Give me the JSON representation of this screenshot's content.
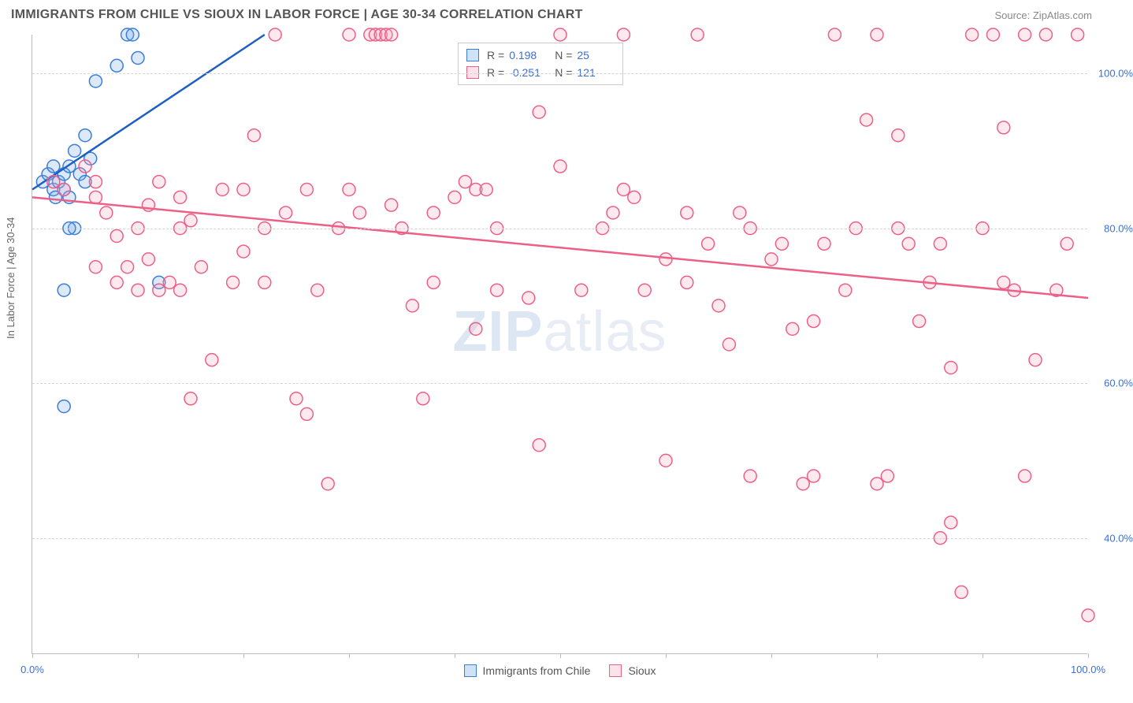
{
  "title": "IMMIGRANTS FROM CHILE VS SIOUX IN LABOR FORCE | AGE 30-34 CORRELATION CHART",
  "source": "Source: ZipAtlas.com",
  "ylabel": "In Labor Force | Age 30-34",
  "watermark_bold": "ZIP",
  "watermark_rest": "atlas",
  "chart": {
    "type": "scatter-correlation",
    "background_color": "#ffffff",
    "grid_color": "#d5d5d5",
    "axis_color": "#bbbbbb",
    "tick_label_color": "#3b6fd6",
    "xlim": [
      0,
      100
    ],
    "ylim": [
      25,
      105
    ],
    "xtick_positions": [
      0,
      10,
      20,
      30,
      40,
      50,
      60,
      70,
      80,
      90,
      100
    ],
    "xtick_labels": {
      "0": "0.0%",
      "100": "100.0%"
    },
    "ytick_positions": [
      40,
      60,
      80,
      100
    ],
    "ytick_labels": [
      "40.0%",
      "60.0%",
      "80.0%",
      "100.0%"
    ],
    "marker_radius": 8,
    "marker_stroke_width": 1.5,
    "marker_fill_opacity": 0.25,
    "trendline_width": 2.5
  },
  "series": [
    {
      "name": "Immigrants from Chile",
      "short": "chile",
      "color": "#6fa8e8",
      "stroke": "#3b7dd8",
      "trend_color": "#1e5fc4",
      "R": "0.198",
      "N": "25",
      "trendline": {
        "x1": 0,
        "y1": 85,
        "x2": 22,
        "y2": 105,
        "dashed_extension": true
      },
      "points": [
        [
          1,
          86
        ],
        [
          1.5,
          87
        ],
        [
          2,
          85
        ],
        [
          2,
          88
        ],
        [
          2.2,
          84
        ],
        [
          2.5,
          86
        ],
        [
          3,
          87
        ],
        [
          3,
          85
        ],
        [
          3.5,
          88
        ],
        [
          3.5,
          84
        ],
        [
          4,
          90
        ],
        [
          4.5,
          87
        ],
        [
          5,
          92
        ],
        [
          5,
          86
        ],
        [
          5.5,
          89
        ],
        [
          6,
          99
        ],
        [
          8,
          101
        ],
        [
          9,
          105
        ],
        [
          9.5,
          105
        ],
        [
          10,
          102
        ],
        [
          4,
          80
        ],
        [
          3.5,
          80
        ],
        [
          3,
          72
        ],
        [
          3,
          57
        ],
        [
          12,
          73
        ]
      ]
    },
    {
      "name": "Sioux",
      "short": "sioux",
      "color": "#f7a8bd",
      "stroke": "#ec5f87",
      "trend_color": "#ec5f87",
      "R": "-0.251",
      "N": "121",
      "trendline": {
        "x1": 0,
        "y1": 84,
        "x2": 100,
        "y2": 71,
        "dashed_extension": false
      },
      "points": [
        [
          2,
          86
        ],
        [
          3,
          85
        ],
        [
          5,
          88
        ],
        [
          6,
          84
        ],
        [
          6,
          86
        ],
        [
          7,
          82
        ],
        [
          8,
          79
        ],
        [
          9,
          75
        ],
        [
          10,
          80
        ],
        [
          11,
          76
        ],
        [
          12,
          86
        ],
        [
          13,
          73
        ],
        [
          14,
          84
        ],
        [
          14,
          72
        ],
        [
          15,
          81
        ],
        [
          16,
          75
        ],
        [
          17,
          63
        ],
        [
          18,
          85
        ],
        [
          20,
          85
        ],
        [
          21,
          92
        ],
        [
          22,
          80
        ],
        [
          23,
          105
        ],
        [
          24,
          82
        ],
        [
          25,
          58
        ],
        [
          26,
          56
        ],
        [
          27,
          72
        ],
        [
          28,
          47
        ],
        [
          29,
          80
        ],
        [
          30,
          105
        ],
        [
          31,
          82
        ],
        [
          32,
          105
        ],
        [
          32.5,
          105
        ],
        [
          33,
          105
        ],
        [
          33.5,
          105
        ],
        [
          34,
          105
        ],
        [
          35,
          80
        ],
        [
          36,
          70
        ],
        [
          37,
          58
        ],
        [
          38,
          82
        ],
        [
          40,
          84
        ],
        [
          41,
          86
        ],
        [
          42,
          67
        ],
        [
          42,
          85
        ],
        [
          43,
          85
        ],
        [
          44,
          80
        ],
        [
          47,
          71
        ],
        [
          48,
          52
        ],
        [
          48,
          95
        ],
        [
          50,
          105
        ],
        [
          52,
          72
        ],
        [
          54,
          80
        ],
        [
          55,
          82
        ],
        [
          56,
          105
        ],
        [
          57,
          84
        ],
        [
          58,
          72
        ],
        [
          60,
          50
        ],
        [
          60,
          76
        ],
        [
          62,
          73
        ],
        [
          63,
          105
        ],
        [
          64,
          78
        ],
        [
          65,
          70
        ],
        [
          66,
          65
        ],
        [
          67,
          82
        ],
        [
          68,
          48
        ],
        [
          70,
          76
        ],
        [
          71,
          78
        ],
        [
          72,
          67
        ],
        [
          73,
          47
        ],
        [
          74,
          48
        ],
        [
          75,
          78
        ],
        [
          76,
          105
        ],
        [
          77,
          72
        ],
        [
          78,
          80
        ],
        [
          79,
          94
        ],
        [
          80,
          105
        ],
        [
          81,
          48
        ],
        [
          82,
          80
        ],
        [
          82,
          92
        ],
        [
          83,
          78
        ],
        [
          84,
          68
        ],
        [
          85,
          73
        ],
        [
          86,
          40
        ],
        [
          87,
          62
        ],
        [
          87,
          42
        ],
        [
          88,
          33
        ],
        [
          89,
          105
        ],
        [
          90,
          80
        ],
        [
          91,
          105
        ],
        [
          92,
          93
        ],
        [
          93,
          72
        ],
        [
          94,
          105
        ],
        [
          94,
          48
        ],
        [
          95,
          63
        ],
        [
          96,
          105
        ],
        [
          97,
          72
        ],
        [
          98,
          78
        ],
        [
          99,
          105
        ],
        [
          100,
          30
        ],
        [
          10,
          72
        ],
        [
          12,
          72
        ],
        [
          15,
          58
        ],
        [
          19,
          73
        ],
        [
          22,
          73
        ],
        [
          26,
          85
        ],
        [
          30,
          85
        ],
        [
          34,
          83
        ],
        [
          38,
          73
        ],
        [
          44,
          72
        ],
        [
          50,
          88
        ],
        [
          56,
          85
        ],
        [
          62,
          82
        ],
        [
          68,
          80
        ],
        [
          74,
          68
        ],
        [
          80,
          47
        ],
        [
          86,
          78
        ],
        [
          92,
          73
        ],
        [
          6,
          75
        ],
        [
          8,
          73
        ],
        [
          11,
          83
        ],
        [
          14,
          80
        ],
        [
          20,
          77
        ]
      ]
    }
  ],
  "legend_bottom": [
    {
      "label": "Immigrants from Chile",
      "series": "chile"
    },
    {
      "label": "Sioux",
      "series": "sioux"
    }
  ]
}
